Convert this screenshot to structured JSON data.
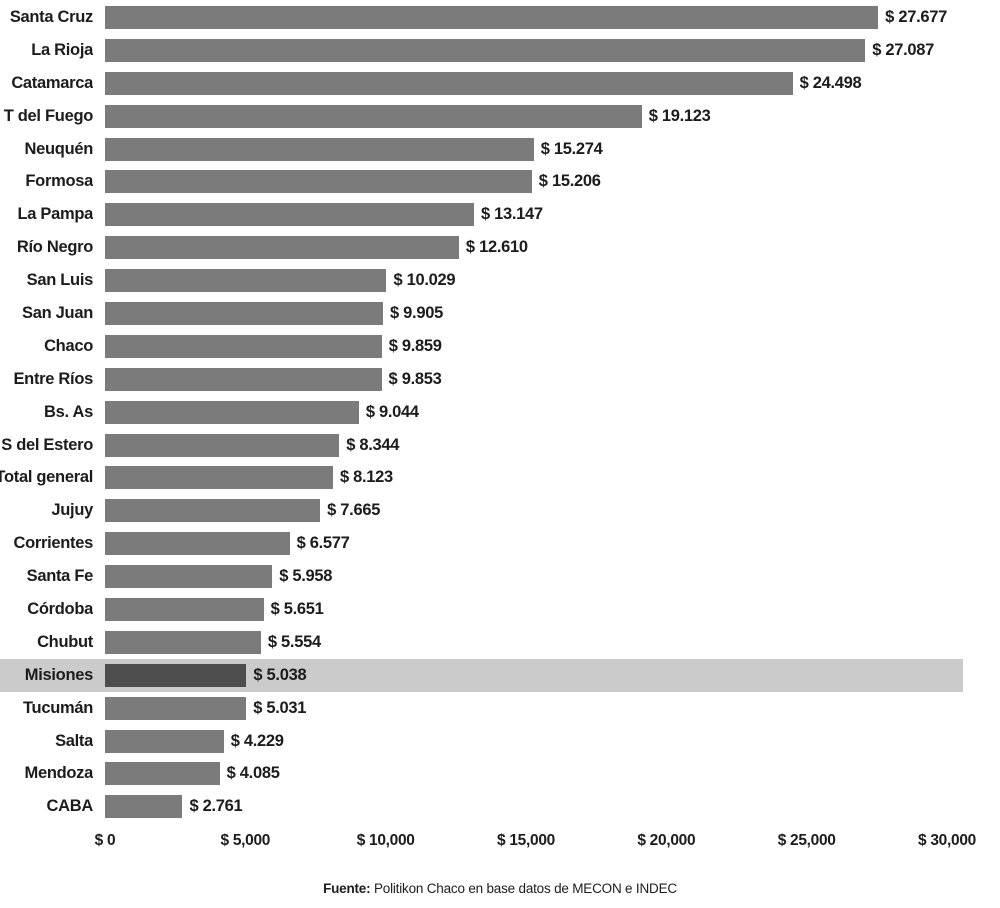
{
  "chart_data": {
    "type": "bar",
    "orientation": "horizontal",
    "categories": [
      "Santa Cruz",
      "La Rioja",
      "Catamarca",
      "T del Fuego",
      "Neuquén",
      "Formosa",
      "La Pampa",
      "Río Negro",
      "San Luis",
      "San Juan",
      "Chaco",
      "Entre Ríos",
      "Bs. As",
      "S del Estero",
      "Total general",
      "Jujuy",
      "Corrientes",
      "Santa Fe",
      "Córdoba",
      "Chubut",
      "Misiones",
      "Tucumán",
      "Salta",
      "Mendoza",
      "CABA"
    ],
    "values": [
      27677,
      27087,
      24498,
      19123,
      15274,
      15206,
      13147,
      12610,
      10029,
      9905,
      9859,
      9853,
      9044,
      8344,
      8123,
      7665,
      6577,
      5958,
      5651,
      5554,
      5038,
      5031,
      4229,
      4085,
      2761
    ],
    "value_labels": [
      "$ 27.677",
      "$ 27.087",
      "$ 24.498",
      "$ 19.123",
      "$ 15.274",
      "$ 15.206",
      "$ 13.147",
      "$ 12.610",
      "$ 10.029",
      "$ 9.905",
      "$ 9.859",
      "$ 9.853",
      "$ 9.044",
      "$ 8.344",
      "$ 8.123",
      "$ 7.665",
      "$ 6.577",
      "$ 5.958",
      "$ 5.651",
      "$ 5.554",
      "$ 5.038",
      "$ 5.031",
      "$ 4.229",
      "$ 4.085",
      "$ 2.761"
    ],
    "x_ticks": [
      "$ 0",
      "$ 5,000",
      "$ 10,000",
      "$ 15,000",
      "$ 20,000",
      "$ 25,000",
      "$ 30,000"
    ],
    "xlim": [
      0,
      30000
    ],
    "grid": false,
    "highlighted_category": "Misiones",
    "source_note": {
      "prefix": "Fuente:",
      "text": " Politikon Chaco en base datos de MECON e INDEC"
    }
  },
  "colors": {
    "background": "#ffffff",
    "bar": "#7b7b7b",
    "bar_highlight": "#4e4e4e",
    "row_highlight_band": "#cbcbcb",
    "text": "#1c1c1c"
  }
}
